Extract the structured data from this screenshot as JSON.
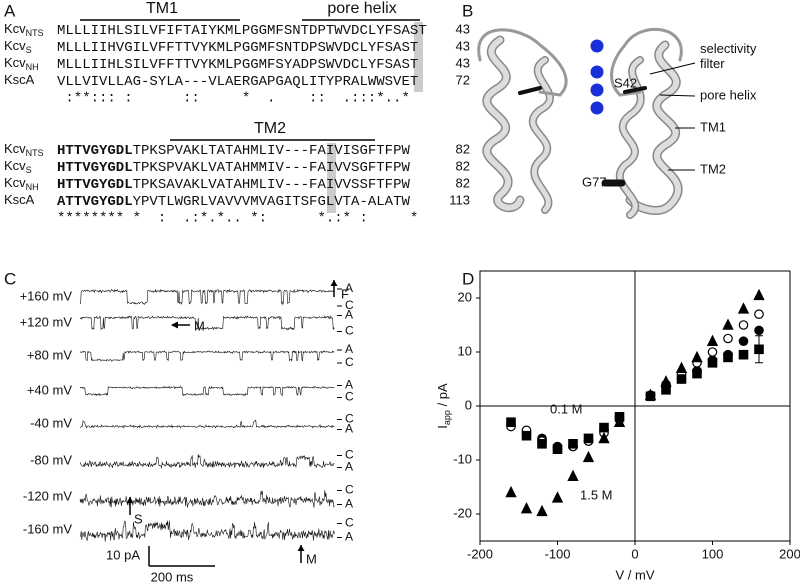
{
  "panel_a": {
    "label": "A",
    "tm1": "TM1",
    "pore_helix": "pore helix",
    "tm2": "TM2",
    "block1": [
      {
        "name": "Kcv",
        "sub": "NTS",
        "bold": "",
        "seq": "MLLLIIHLSILVFIFTAIYKMLPGGMFSNTDPTWVDCLYFSAST",
        "num": "43"
      },
      {
        "name": "Kcv",
        "sub": "S",
        "bold": "",
        "seq": "MLLLIIHVGILVFFTTVYKMLPGGMFSNTDPSWVDCLYFSAST",
        "num": "43"
      },
      {
        "name": "Kcv",
        "sub": "NH",
        "bold": "",
        "seq": "MLLLIIHLSILVFFTTVYKMLPGGMFSYADPSWVDCLYFSAST",
        "num": "43"
      },
      {
        "name": "KscA",
        "sub": "",
        "bold": "",
        "seq": "VLLVIVLLAG-SYLA---VLAERGAPGAQLITYPRALWWSVET",
        "num": "72"
      }
    ],
    "cons1": " :**::: :      ::     *  .    ::  .:::*..*",
    "block2": [
      {
        "name": "Kcv",
        "sub": "NTS",
        "bold": "HTTVGYGDL",
        "seq": "TPKSPVAKLTATAHMLIV---FAIVISGFTFPW",
        "num": "82"
      },
      {
        "name": "Kcv",
        "sub": "S",
        "bold": "HTTVGYGDL",
        "seq": "TPKSPVAKLVATAHMMIV---FAIVVSGFTFPW",
        "num": "82"
      },
      {
        "name": "Kcv",
        "sub": "NH",
        "bold": "HTTVGYGDL",
        "seq": "TPKSAVAKLVATAHMLIV---FAIVVSSFTFPW",
        "num": "82"
      },
      {
        "name": "KscA",
        "sub": "",
        "bold": "ATTVGYGDL",
        "seq": "YPVTLWGRLVAVVVMVAGITSFGLVTA-ALATW",
        "num": "113"
      }
    ],
    "cons2": "******** *  :  .:*.*.. *:      *.:* :     *"
  },
  "panel_b": {
    "label": "B",
    "selectivity_filter": "selectivity filter",
    "pore_helix": "pore helix",
    "tm1": "TM1",
    "tm2": "TM2",
    "s42": "S42",
    "g77": "G77"
  },
  "panel_c": {
    "label": "C",
    "rows": [
      {
        "voltage": "+160 mV",
        "top": "A",
        "bottom": "C"
      },
      {
        "voltage": "+120 mV",
        "top": "A",
        "bottom": "C"
      },
      {
        "voltage": "+80 mV",
        "top": "A",
        "bottom": "C"
      },
      {
        "voltage": "+40 mV",
        "top": "A",
        "bottom": "C"
      },
      {
        "voltage": "-40 mV",
        "top": "C",
        "bottom": "A"
      },
      {
        "voltage": "-80 mV",
        "top": "C",
        "bottom": "A"
      },
      {
        "voltage": "-120 mV",
        "top": "C",
        "bottom": "A"
      },
      {
        "voltage": "-160 mV",
        "top": "C",
        "bottom": "A"
      }
    ],
    "arrows": [
      "F",
      "M",
      "S",
      "M"
    ],
    "scale_current": "10 pA",
    "scale_time": "200 ms"
  },
  "panel_d": {
    "label": "D",
    "chart_data": {
      "type": "scatter",
      "xlabel": "V / mV",
      "ylabel": {
        "main": "I",
        "sub": "app",
        "unit": " / pA"
      },
      "annotations": [
        "0.1 M",
        "1.5 M"
      ],
      "x": [
        -160,
        -140,
        -120,
        -100,
        -80,
        -60,
        -40,
        -20,
        20,
        40,
        60,
        80,
        100,
        120,
        140,
        160
      ],
      "series": [
        {
          "marker": "circle",
          "fill": "#000",
          "color": "#000",
          "values": [
            -3.5,
            -5,
            -6,
            -7.5,
            -7.5,
            -6.5,
            -4.5,
            -2,
            2,
            3.5,
            5,
            6.5,
            8.5,
            9.5,
            12,
            14
          ]
        },
        {
          "marker": "circle",
          "fill": "#fff",
          "color": "#000",
          "values": [
            -3.8,
            -4.5,
            -6.5,
            -8,
            -7.5,
            -6.5,
            -5,
            -2.5,
            2,
            4,
            6,
            8,
            10,
            12.5,
            15,
            17
          ]
        },
        {
          "marker": "square",
          "fill": "#000",
          "color": "#000",
          "values": [
            -3,
            -5.5,
            -7,
            -8,
            -7,
            -6,
            -4,
            -2,
            1.8,
            3,
            5,
            6,
            8,
            9,
            9.5,
            10.5
          ],
          "errors": [
            null,
            null,
            null,
            null,
            null,
            null,
            null,
            null,
            null,
            null,
            null,
            null,
            null,
            null,
            null,
            2.5
          ]
        },
        {
          "marker": "triangle",
          "fill": "#000",
          "color": "#000",
          "values": [
            -16,
            -19,
            -19.5,
            -17,
            -13,
            -9.5,
            -6,
            -3,
            2,
            4.5,
            7,
            9,
            12,
            15,
            18,
            20.5
          ]
        }
      ],
      "xlim": [
        -200,
        200
      ],
      "ylim": [
        -25,
        25
      ],
      "xticks": [
        -200,
        -100,
        0,
        100,
        200
      ],
      "yticks": [
        -20,
        -10,
        0,
        10,
        20
      ]
    }
  }
}
